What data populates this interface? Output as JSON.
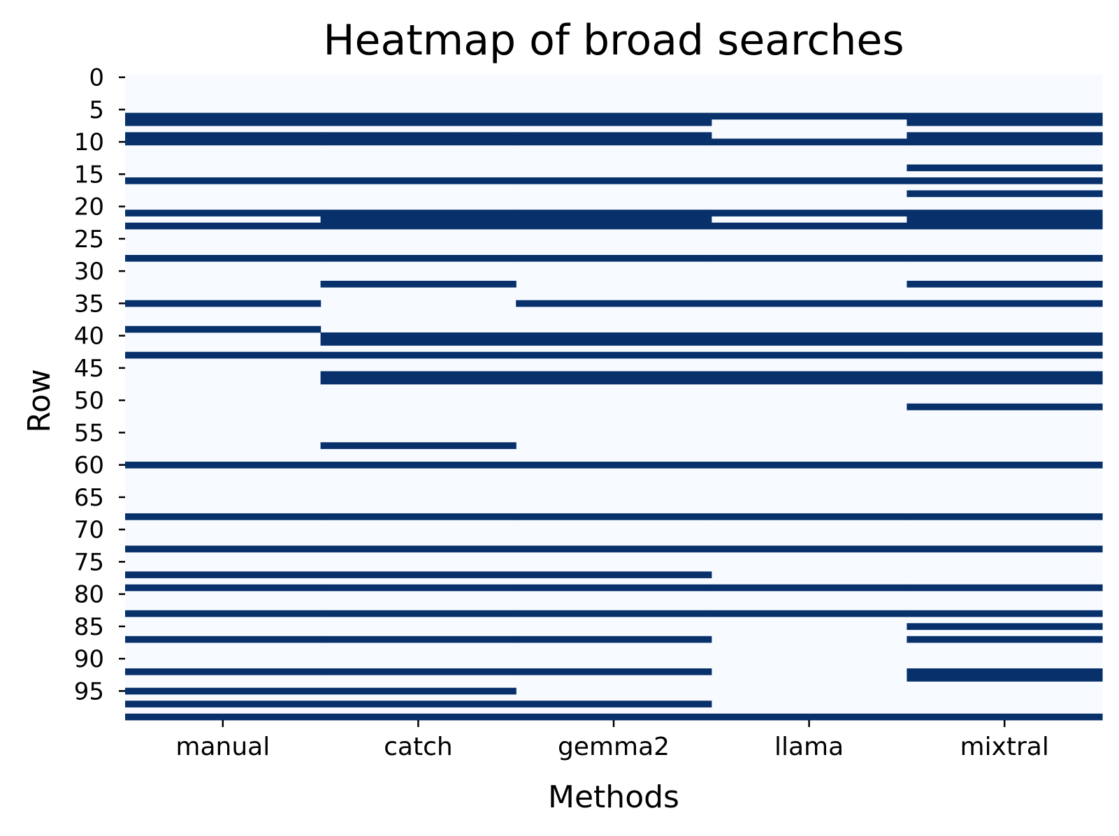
{
  "chart_data": {
    "type": "heatmap",
    "title": "Heatmap of broad searches",
    "xlabel": "Methods",
    "ylabel": "Row",
    "x_categories": [
      "manual",
      "catch",
      "gemma2",
      "llama",
      "mixtral"
    ],
    "y_range": [
      0,
      99
    ],
    "y_ticks": [
      0,
      5,
      10,
      15,
      20,
      25,
      30,
      35,
      40,
      45,
      50,
      55,
      60,
      65,
      70,
      75,
      80,
      85,
      90,
      95
    ],
    "value_domain": [
      0,
      1
    ],
    "colors": {
      "zero": "#f7fbff",
      "one": "#08306b"
    },
    "grid": false,
    "legend": "none",
    "active_rows": {
      "manual": [
        6,
        7,
        9,
        10,
        16,
        21,
        23,
        28,
        35,
        39,
        43,
        60,
        68,
        73,
        77,
        79,
        83,
        87,
        92,
        95,
        97,
        99
      ],
      "catch": [
        6,
        7,
        9,
        10,
        16,
        21,
        22,
        23,
        28,
        32,
        40,
        41,
        43,
        46,
        47,
        57,
        60,
        68,
        73,
        77,
        79,
        83,
        87,
        92,
        95,
        97,
        99
      ],
      "gemma2": [
        6,
        7,
        9,
        10,
        16,
        21,
        22,
        23,
        28,
        35,
        40,
        41,
        43,
        46,
        47,
        60,
        68,
        73,
        77,
        79,
        83,
        87,
        92,
        97,
        99
      ],
      "llama": [
        6,
        10,
        16,
        21,
        23,
        28,
        35,
        40,
        41,
        43,
        46,
        47,
        60,
        68,
        73,
        79,
        83,
        99
      ],
      "mixtral": [
        6,
        7,
        9,
        10,
        14,
        16,
        18,
        21,
        22,
        23,
        28,
        32,
        35,
        40,
        41,
        43,
        46,
        47,
        51,
        60,
        68,
        73,
        79,
        83,
        85,
        87,
        92,
        93,
        99
      ]
    }
  }
}
